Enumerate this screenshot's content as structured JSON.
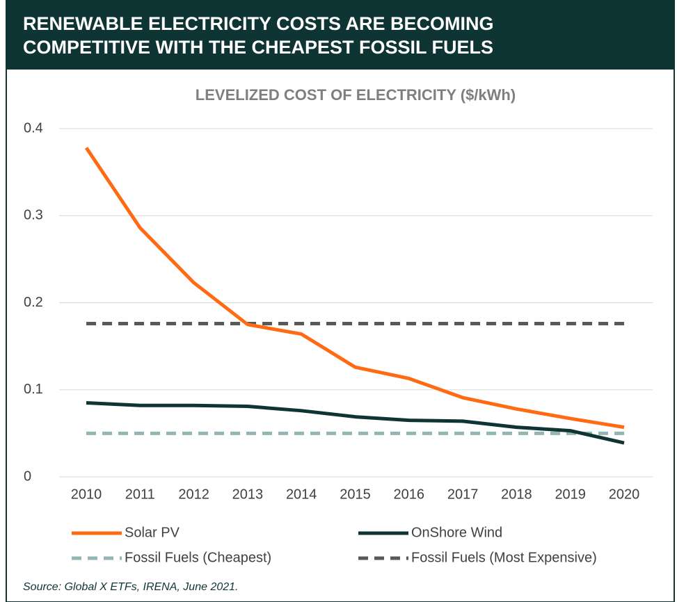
{
  "chart_data": {
    "type": "line",
    "heading": [
      "RENEWABLE ELECTRICITY COSTS ARE BECOMING",
      "COMPETITIVE WITH THE CHEAPEST FOSSIL FUELS"
    ],
    "title": "LEVELIZED COST OF ELECTRICITY ($/kWh)",
    "categories": [
      "2010",
      "2011",
      "2012",
      "2013",
      "2014",
      "2015",
      "2016",
      "2017",
      "2018",
      "2019",
      "2020"
    ],
    "series": [
      {
        "name": "Solar PV",
        "color": "#ff6a13",
        "dashed": false,
        "values": [
          0.378,
          0.286,
          0.223,
          0.175,
          0.164,
          0.126,
          0.113,
          0.091,
          0.078,
          0.067,
          0.057
        ]
      },
      {
        "name": "OnShore Wind",
        "color": "#0e3534",
        "dashed": false,
        "values": [
          0.085,
          0.082,
          0.082,
          0.081,
          0.076,
          0.069,
          0.065,
          0.064,
          0.057,
          0.053,
          0.039
        ]
      },
      {
        "name": "Fossil Fuels (Cheapest)",
        "color": "#93b5b3",
        "dashed": true,
        "values": [
          0.05,
          0.05,
          0.05,
          0.05,
          0.05,
          0.05,
          0.05,
          0.05,
          0.05,
          0.05,
          0.05
        ]
      },
      {
        "name": "Fossil Fuels (Most Expensive)",
        "color": "#595959",
        "dashed": true,
        "values": [
          0.176,
          0.176,
          0.176,
          0.176,
          0.176,
          0.176,
          0.176,
          0.176,
          0.176,
          0.176,
          0.176
        ]
      }
    ],
    "ylim": [
      0,
      0.4
    ],
    "yticks": [
      0,
      0.1,
      0.2,
      0.3,
      0.4
    ],
    "grid": true,
    "legend": "bottom",
    "source": "Source: Global X ETFs, IRENA, June 2021."
  }
}
